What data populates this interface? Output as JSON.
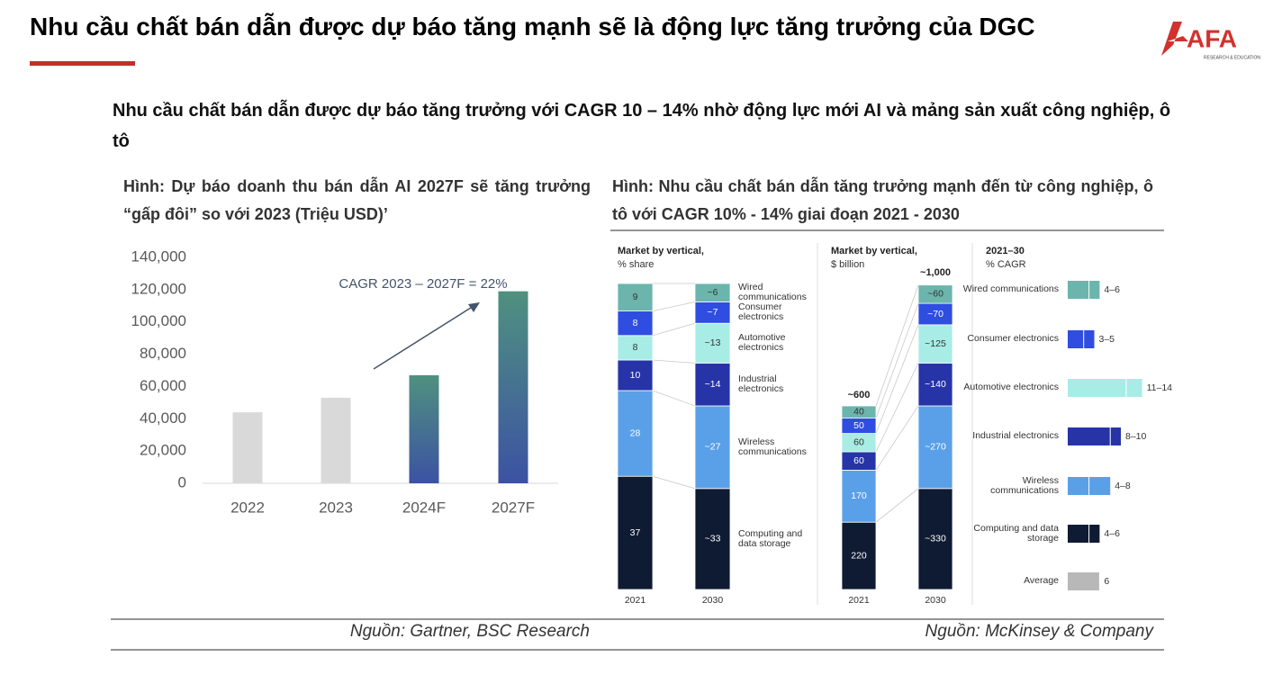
{
  "header": {
    "title": "Nhu cầu chất bán dẫn được dự báo tăng mạnh sẽ là động lực tăng trưởng của DGC",
    "logo": "AFA",
    "logo_tagline": "RESEARCH & EDUCATION"
  },
  "subtitle": "Nhu cầu chất bán dẫn được dự báo tăng trưởng với CAGR 10 – 14% nhờ động lực mới AI và mảng sản xuất công nghiệp, ô tô",
  "captions": [
    "Hình: Dự báo doanh thu bán dẫn AI 2027F sẽ tăng trưởng “gấp đôi” so với 2023 (Triệu USD)’",
    "Hình: Nhu cầu chất bán dẫn tăng trưởng mạnh đến từ công nghiệp, ô tô với CAGR 10% - 14% giai đoạn 2021 - 2030"
  ],
  "sources": [
    "Nguồn: Gartner, BSC Research",
    "Nguồn: McKinsey & Company"
  ],
  "chart_data": [
    {
      "type": "bar",
      "categories": [
        "2022",
        "2023",
        "2024F",
        "2027F"
      ],
      "values": [
        44000,
        53000,
        67000,
        119000
      ],
      "colors": [
        "#d9d9d9",
        "#d9d9d9",
        "#4f917f",
        "#4f917f"
      ],
      "gradient_to": "#3c52a3",
      "ylim": [
        0,
        140000
      ],
      "yticks": [
        0,
        {
          "value": 20000,
          "label": "20,000"
        },
        {
          "value": 40000,
          "label": "40,000"
        },
        {
          "value": 60000,
          "label": "60,000"
        },
        {
          "value": 80000,
          "label": "80,000"
        },
        {
          "value": 100000,
          "label": "100,000"
        },
        {
          "value": 120000,
          "label": "120,000"
        },
        {
          "value": 140000,
          "label": "140,000"
        }
      ],
      "annotation": "CAGR 2023 – 2027F = 22%"
    },
    {
      "type": "stacked_bar",
      "title": "Market by vertical,",
      "subtitle": "% share",
      "categories": [
        "2021",
        "2030"
      ],
      "ylim": [
        0,
        100
      ],
      "series": [
        {
          "name": "Computing and data storage",
          "color": "#0f1a33",
          "values": [
            37,
            33
          ],
          "value_labels": [
            "37",
            "~33"
          ]
        },
        {
          "name": "Wireless communications",
          "color": "#5aa0e8",
          "values": [
            28,
            27
          ],
          "value_labels": [
            "28",
            "~27"
          ]
        },
        {
          "name": "Industrial electronics",
          "color": "#2634a8",
          "values": [
            10,
            14
          ],
          "value_labels": [
            "10",
            "~14"
          ]
        },
        {
          "name": "Automotive electronics",
          "color": "#a8ece6",
          "values": [
            8,
            13
          ],
          "value_labels": [
            "8",
            "~13"
          ]
        },
        {
          "name": "Consumer electronics",
          "color": "#2f4de0",
          "values": [
            8,
            7
          ],
          "value_labels": [
            "8",
            "~7"
          ]
        },
        {
          "name": "Wired communications",
          "color": "#6bb5ac",
          "values": [
            9,
            6
          ],
          "value_labels": [
            "9",
            "~6"
          ]
        }
      ]
    },
    {
      "type": "stacked_bar",
      "title": "Market by vertical,",
      "subtitle": "$ billion",
      "categories": [
        "2021",
        "2030"
      ],
      "ylim": [
        0,
        1000
      ],
      "totals": [
        600,
        1000
      ],
      "total_labels": [
        "~600",
        "~1,000"
      ],
      "series": [
        {
          "color": "#0f1a33",
          "values": [
            220,
            330
          ],
          "value_labels": [
            "220",
            "~330"
          ]
        },
        {
          "color": "#5aa0e8",
          "values": [
            170,
            270
          ],
          "value_labels": [
            "170",
            "~270"
          ]
        },
        {
          "color": "#2634a8",
          "values": [
            60,
            140
          ],
          "value_labels": [
            "60",
            "~140"
          ]
        },
        {
          "color": "#a8ece6",
          "values": [
            60,
            125
          ],
          "value_labels": [
            "60",
            "~125"
          ]
        },
        {
          "color": "#2f4de0",
          "values": [
            50,
            70
          ],
          "value_labels": [
            "50",
            "~70"
          ]
        },
        {
          "color": "#6bb5ac",
          "values": [
            40,
            60
          ],
          "value_labels": [
            "40",
            "~60"
          ]
        }
      ]
    },
    {
      "type": "range_bar",
      "title": "2021–30",
      "subtitle": "% CAGR",
      "xlim": [
        0,
        15
      ],
      "categories": [
        "Wired communications",
        "Consumer electronics",
        "Automotive electronics",
        "Industrial electronics",
        "Wireless communications",
        "Computing and data storage",
        "Average"
      ],
      "low": [
        4,
        3,
        11,
        8,
        4,
        4,
        6
      ],
      "high": [
        6,
        5,
        14,
        10,
        8,
        6,
        6
      ],
      "value_labels": [
        "4–6",
        "3–5",
        "11–14",
        "8–10",
        "4–8",
        "4–6",
        "6"
      ],
      "colors": [
        "#6bb5ac",
        "#2f4de0",
        "#a8ece6",
        "#2634a8",
        "#5aa0e8",
        "#0f1a33",
        "#b8b8b8"
      ]
    }
  ]
}
